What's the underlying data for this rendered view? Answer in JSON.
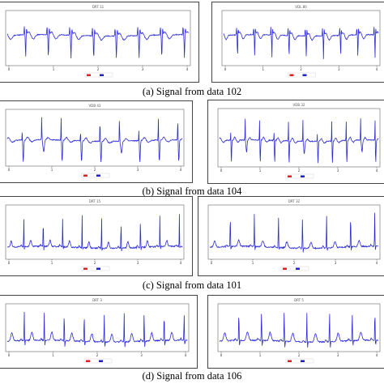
{
  "captions": [
    "(a)  Signal from data 102",
    "(b)  Signal from data 104",
    "(c)  Signal from data 101",
    "(d)  Signal from data 106"
  ],
  "colors": {
    "signal": "#2b2bd6",
    "legend_red": "#e02020",
    "legend_blue": "#2020c8",
    "frame": "#444444"
  },
  "chart_data": [
    {
      "type": "line",
      "panel_title": "DRT 11",
      "signal_style": "inverted-sharp",
      "beats": 8,
      "xtick_labels": [
        "0",
        "1",
        "2",
        "3",
        "4"
      ],
      "legend": [
        "",
        ""
      ],
      "series": [
        {
          "name": ""
        }
      ]
    },
    {
      "type": "line",
      "panel_title": "VDL 80",
      "signal_style": "inverted-sharp",
      "beats": 9,
      "xtick_labels": [
        "0",
        "1",
        "2",
        "3",
        "4"
      ],
      "legend": [
        "",
        ""
      ],
      "series": [
        {
          "name": ""
        }
      ]
    },
    {
      "type": "line",
      "panel_title": "VDB 43",
      "signal_style": "irregular",
      "beats": 9,
      "xtick_labels": [
        "0",
        "1",
        "2",
        "3",
        "4"
      ],
      "legend": [
        "",
        ""
      ],
      "series": [
        {
          "name": ""
        }
      ]
    },
    {
      "type": "line",
      "panel_title": "VDB 32",
      "signal_style": "irregular",
      "beats": 11,
      "xtick_labels": [
        "0",
        "1",
        "2",
        "3",
        "4"
      ],
      "legend": [
        "",
        ""
      ],
      "series": [
        {
          "name": ""
        }
      ]
    },
    {
      "type": "line",
      "panel_title": "DRT 15",
      "signal_style": "upright",
      "beats": 9,
      "xtick_labels": [
        "0",
        "1",
        "2",
        "3",
        "4"
      ],
      "legend": [
        "",
        ""
      ],
      "series": [
        {
          "name": ""
        }
      ]
    },
    {
      "type": "line",
      "panel_title": "DRT 32",
      "signal_style": "upright",
      "beats": 7,
      "xtick_labels": [
        "0",
        "1",
        "2",
        "3",
        "4"
      ],
      "legend": [
        "",
        ""
      ],
      "series": [
        {
          "name": ""
        }
      ]
    },
    {
      "type": "line",
      "panel_title": "DRT 3",
      "signal_style": "upright-wide",
      "beats": 9,
      "xtick_labels": [
        "0",
        "1",
        "2",
        "3",
        "4"
      ],
      "legend": [
        "",
        ""
      ],
      "series": [
        {
          "name": ""
        }
      ]
    },
    {
      "type": "line",
      "panel_title": "DRT 5",
      "signal_style": "upright-wide",
      "beats": 7,
      "xtick_labels": [
        "0",
        "1",
        "2",
        "3",
        "4"
      ],
      "legend": [
        "",
        ""
      ],
      "series": [
        {
          "name": ""
        }
      ]
    }
  ]
}
